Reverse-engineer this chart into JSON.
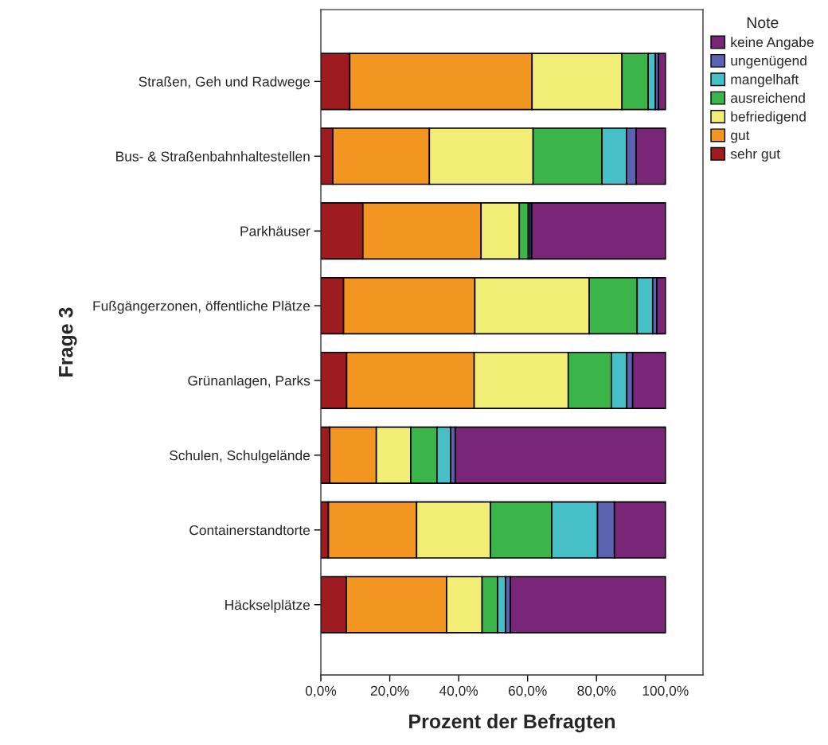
{
  "chart_data": {
    "type": "bar",
    "orientation": "horizontal",
    "stacked": true,
    "xlabel": "Prozent der Befragten",
    "ylabel": "Frage 3",
    "legend_title": "Note",
    "legend": "right",
    "categories": [
      "Straßen, Geh und Radwege",
      "Bus- & Straßenbahnhaltestellen",
      "Parkhäuser",
      "Fußgängerzonen, öffentliche Plätze",
      "Grünanlagen, Parks",
      "Schulen, Schulgelände",
      "Containerstandtorte",
      "Häckselplätze"
    ],
    "series": [
      {
        "name": "sehr gut",
        "color": "#9e1b1f",
        "values": [
          8.4,
          3.5,
          12.2,
          6.6,
          7.5,
          2.6,
          2.2,
          7.4
        ]
      },
      {
        "name": "gut",
        "color": "#f39621",
        "values": [
          52.9,
          28.0,
          34.3,
          38.1,
          37.0,
          13.5,
          25.6,
          29.1
        ]
      },
      {
        "name": "befriedigend",
        "color": "#f2ee75",
        "values": [
          26.1,
          30.1,
          11.1,
          33.2,
          27.3,
          10.0,
          21.4,
          10.3
        ]
      },
      {
        "name": "ausreichend",
        "color": "#3bb44a",
        "values": [
          7.6,
          20.0,
          2.6,
          13.9,
          12.5,
          7.6,
          17.8,
          4.5
        ]
      },
      {
        "name": "mangelhaft",
        "color": "#46bfc6",
        "values": [
          2.1,
          7.1,
          0.5,
          4.5,
          4.5,
          4.0,
          13.3,
          2.3
        ]
      },
      {
        "name": "ungenügend",
        "color": "#5b63b0",
        "values": [
          0.9,
          2.8,
          0.5,
          1.2,
          1.7,
          1.3,
          4.9,
          1.4
        ]
      },
      {
        "name": "keine Angabe",
        "color": "#7a2678",
        "values": [
          2.0,
          8.5,
          38.8,
          2.5,
          9.5,
          61.0,
          14.8,
          45.0
        ]
      }
    ],
    "xlim": [
      0,
      110.9
    ],
    "xticks": [
      {
        "value": 0,
        "label": "0,0%"
      },
      {
        "value": 20,
        "label": "20,0%"
      },
      {
        "value": 40,
        "label": "40,0%"
      },
      {
        "value": 60,
        "label": "60,0%"
      },
      {
        "value": 80,
        "label": "80,0%"
      },
      {
        "value": 100,
        "label": "100,0%"
      }
    ],
    "grid": false
  }
}
